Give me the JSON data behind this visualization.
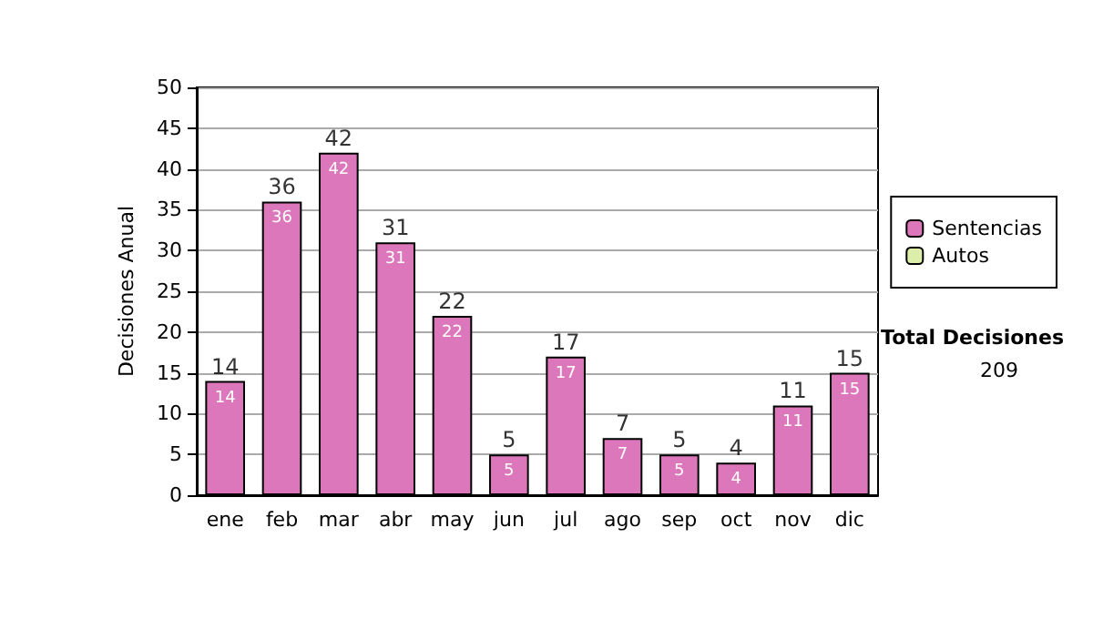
{
  "chart_data": {
    "type": "bar",
    "ylabel": "Decisiones Anual",
    "categories": [
      "ene",
      "feb",
      "mar",
      "abr",
      "may",
      "jun",
      "jul",
      "ago",
      "sep",
      "oct",
      "nov",
      "dic"
    ],
    "series": [
      {
        "name": "Sentencias",
        "color": "#dd77bb",
        "values": [
          14,
          36,
          42,
          31,
          22,
          5,
          17,
          7,
          5,
          4,
          11,
          15
        ],
        "value_labels": [
          "14",
          "36",
          "42",
          "31",
          "22",
          "5",
          "17",
          "7",
          "5",
          "4",
          "11",
          "15"
        ]
      },
      {
        "name": "Autos",
        "color": "#ddeeaa",
        "values": [
          null,
          null,
          null,
          null,
          null,
          null,
          null,
          null,
          null,
          null,
          null,
          null
        ]
      }
    ],
    "stacked": true,
    "totals": [
      "14",
      "36",
      "42",
      "31",
      "22",
      "5",
      "17",
      "7",
      "5",
      "4",
      "11",
      "15"
    ],
    "ylim": [
      0,
      50
    ],
    "yticks": [
      0,
      5,
      10,
      15,
      20,
      25,
      30,
      35,
      40,
      45,
      50
    ],
    "grid": "y",
    "legend": "right",
    "annotations": [
      "Total Decisiones",
      "209"
    ]
  }
}
